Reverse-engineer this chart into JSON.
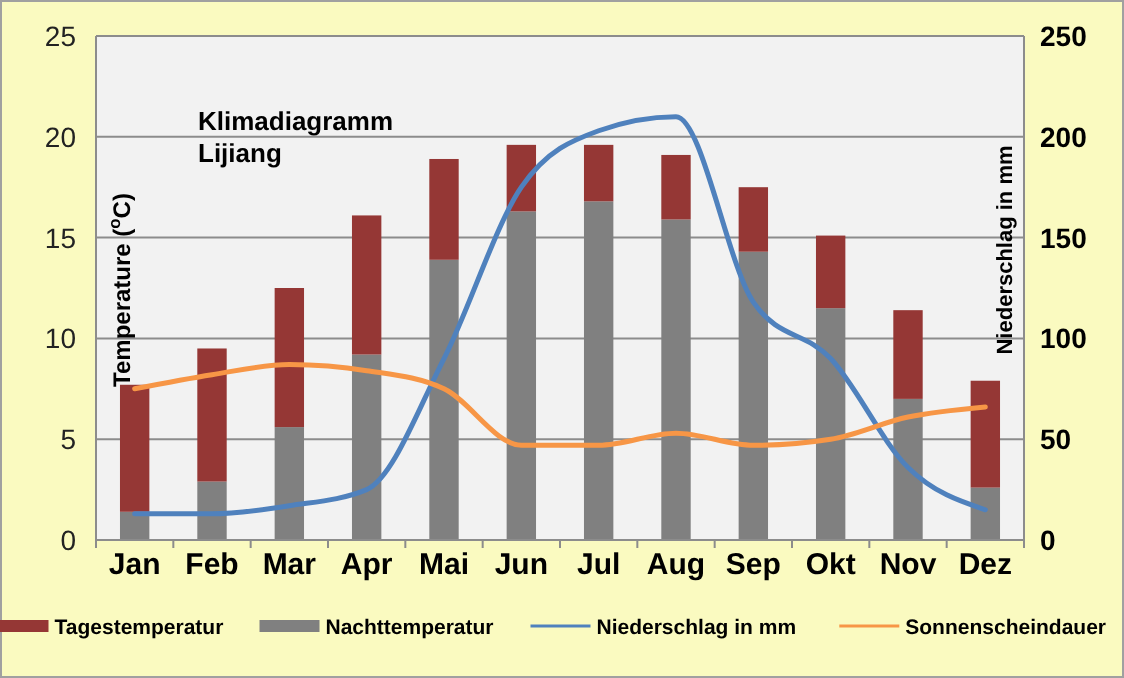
{
  "chart_data": {
    "type": "bar",
    "title": "Klimadiagramm Lijiang",
    "ylabel": "Temperature ($^{o}$C)",
    "y2label": "Niederschlag in mm",
    "categories": [
      "Jan",
      "Feb",
      "Mar",
      "Apr",
      "Mai",
      "Jun",
      "Jul",
      "Aug",
      "Sep",
      "Okt",
      "Nov",
      "Dez"
    ],
    "stacked": true,
    "series": [
      {
        "name": "Nachttemperatur",
        "color": "#808080",
        "values": [
          1.4,
          2.9,
          5.6,
          9.2,
          13.9,
          16.3,
          16.8,
          15.9,
          14.3,
          11.5,
          7.0,
          2.6
        ]
      },
      {
        "name": "Tagestemperatur",
        "color": "#953735",
        "values": [
          6.3,
          6.6,
          6.9,
          6.9,
          5.0,
          3.3,
          2.8,
          3.2,
          3.2,
          3.6,
          4.4,
          5.3
        ]
      },
      {
        "name": "Niederschlag in mm",
        "type": "line",
        "axis": "y2",
        "color": "#4f81bd",
        "values": [
          13,
          13,
          17,
          25,
          90,
          175,
          203,
          210,
          118,
          90,
          36,
          15
        ]
      },
      {
        "name": "Sonnenscheindauer",
        "type": "line",
        "axis": "y2",
        "color": "#f79646",
        "values": [
          75,
          82,
          87,
          84,
          75,
          47,
          47,
          53,
          47,
          50,
          61,
          66
        ]
      }
    ],
    "ylim": [
      0,
      25
    ],
    "yticks": [
      0,
      5,
      10,
      15,
      20,
      25
    ],
    "y2lim": [
      0,
      250
    ],
    "y2ticks": [
      0,
      50,
      100,
      150,
      200,
      250
    ],
    "grid": "y",
    "legend": "bottom"
  }
}
